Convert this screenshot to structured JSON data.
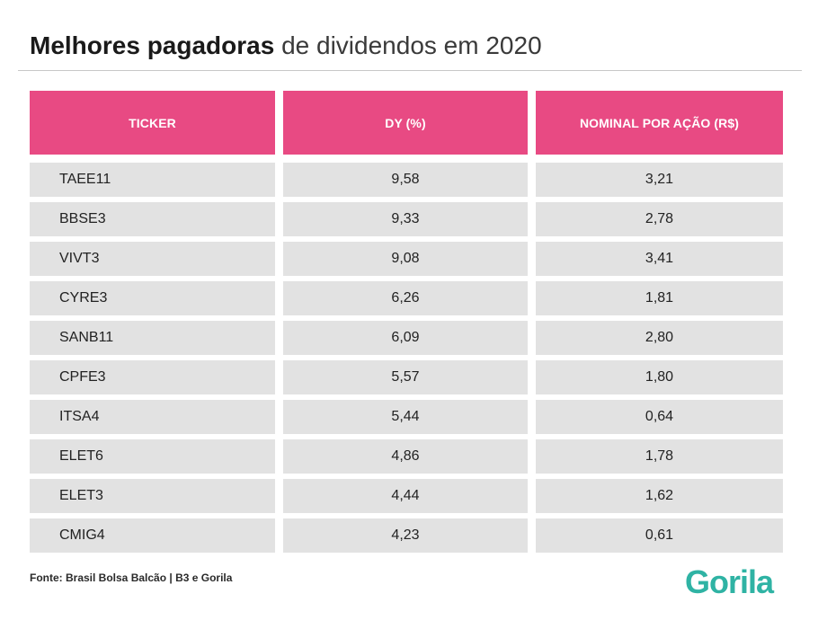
{
  "title": {
    "bold": "Melhores pagadoras",
    "light": " de dividendos em 2020"
  },
  "chart_data": {
    "type": "table",
    "title": "Melhores pagadoras de dividendos em 2020",
    "columns": [
      "TICKER",
      "DY (%)",
      "NOMINAL POR AÇÃO (R$)"
    ],
    "rows": [
      [
        "TAEE11",
        "9,58",
        "3,21"
      ],
      [
        "BBSE3",
        "9,33",
        "2,78"
      ],
      [
        "VIVT3",
        "9,08",
        "3,41"
      ],
      [
        "CYRE3",
        "6,26",
        "1,81"
      ],
      [
        "SANB11",
        "6,09",
        "2,80"
      ],
      [
        "CPFE3",
        "5,57",
        "1,80"
      ],
      [
        "ITSA4",
        "5,44",
        "0,64"
      ],
      [
        "ELET6",
        "4,86",
        "1,78"
      ],
      [
        "ELET3",
        "4,44",
        "1,62"
      ],
      [
        "CMIG4",
        "4,23",
        "0,61"
      ]
    ]
  },
  "source": "Fonte: Brasil Bolsa Balcão | B3 e Gorila",
  "logo": "Gorila",
  "colors": {
    "header": "#e84a83",
    "row": "#e2e2e2",
    "logo": "#2fb3a4"
  }
}
